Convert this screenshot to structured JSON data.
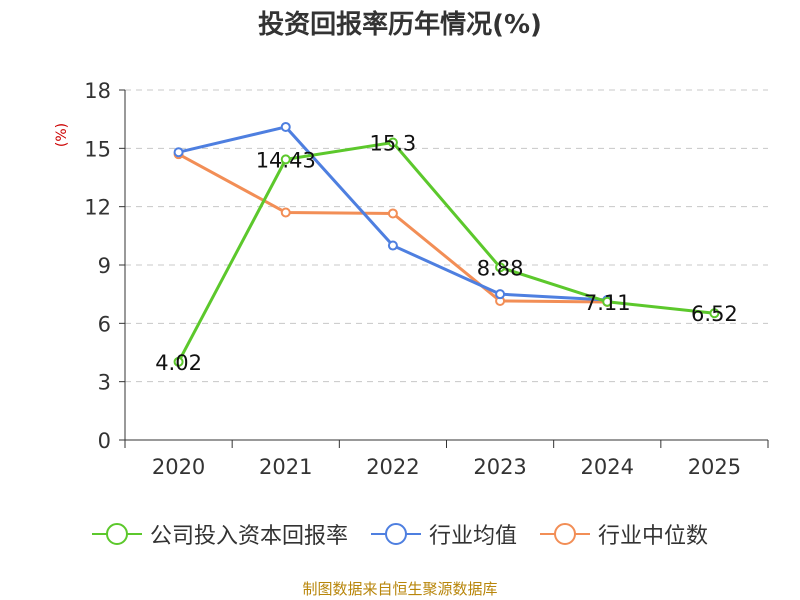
{
  "chart_data": {
    "type": "line",
    "title": "投资回报率历年情况(%)",
    "ylabel": "(%)",
    "xlabel": "",
    "categories": [
      "2020",
      "2021",
      "2022",
      "2023",
      "2024",
      "2025"
    ],
    "ylim": [
      0,
      18
    ],
    "yticks": [
      0,
      3,
      6,
      9,
      12,
      15,
      18
    ],
    "grid": true,
    "legend_position": "bottom",
    "series": [
      {
        "name": "公司投入资本回报率",
        "color": "#5cc82c",
        "values": [
          4.02,
          14.43,
          15.3,
          8.88,
          7.11,
          6.52
        ],
        "labels": [
          "4.02",
          "14.43",
          "15.3",
          "8.88",
          "7.11",
          "6.52"
        ]
      },
      {
        "name": "行业均值",
        "color": "#4e7fe0",
        "values": [
          14.8,
          16.1,
          10.0,
          7.5,
          7.2,
          null
        ]
      },
      {
        "name": "行业中位数",
        "color": "#f28e56",
        "values": [
          14.7,
          11.7,
          11.65,
          7.15,
          7.1,
          null
        ]
      }
    ]
  },
  "source": "制图数据来自恒生聚源数据库"
}
